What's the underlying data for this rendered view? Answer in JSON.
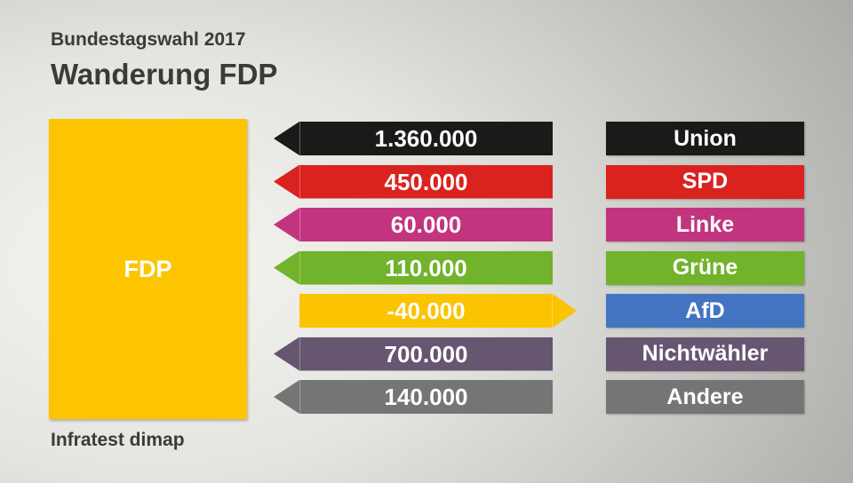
{
  "header": {
    "kicker": "Bundestagswahl 2017",
    "title": "Wanderung FDP"
  },
  "party_block": {
    "label": "FDP",
    "color": "#fdc500"
  },
  "source": "Infratest dimap",
  "chart_data": {
    "type": "bar",
    "title": "Wanderung FDP",
    "subtitle": "Bundestagswahl 2017",
    "description": "Voter migration to/from FDP; arrows pointing left mean gains for FDP, arrow pointing right means losses to that party",
    "legend_position": "right",
    "source": "Infratest dimap",
    "rows": [
      {
        "party": "Union",
        "value": "1.360.000",
        "numeric": 1360000,
        "direction": "left",
        "color": "#1b1a19"
      },
      {
        "party": "SPD",
        "value": "450.000",
        "numeric": 450000,
        "direction": "left",
        "color": "#da231f"
      },
      {
        "party": "Linke",
        "value": "60.000",
        "numeric": 60000,
        "direction": "left",
        "color": "#c2357e"
      },
      {
        "party": "Grüne",
        "value": "110.000",
        "numeric": 110000,
        "direction": "left",
        "color": "#71b32a"
      },
      {
        "party": "AfD",
        "value": "-40.000",
        "numeric": -40000,
        "direction": "right",
        "color": "#fcc300",
        "label_color": "#4374c1"
      },
      {
        "party": "Nichtwähler",
        "value": "700.000",
        "numeric": 700000,
        "direction": "left",
        "color": "#665672"
      },
      {
        "party": "Andere",
        "value": "140.000",
        "numeric": 140000,
        "direction": "left",
        "color": "#767575"
      }
    ]
  }
}
